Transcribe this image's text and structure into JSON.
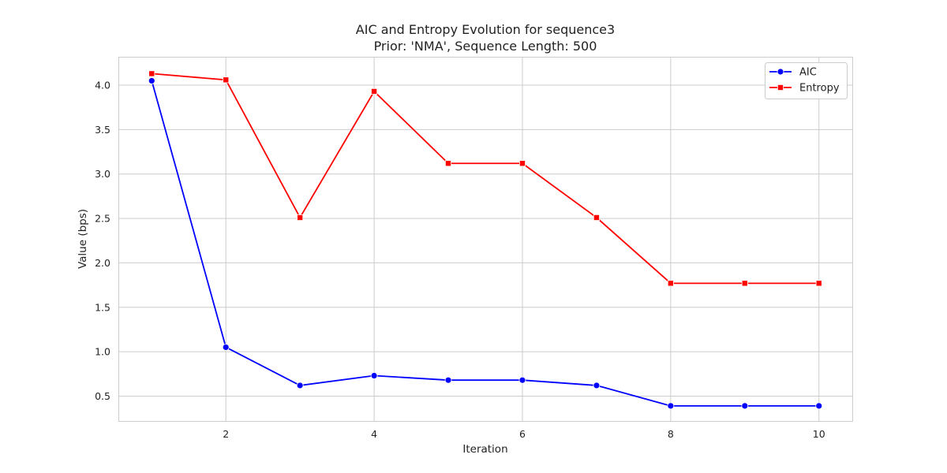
{
  "chart_data": {
    "type": "line",
    "title": "AIC and Entropy Evolution for sequence3",
    "subtitle": "Prior: 'NMA', Sequence Length: 500",
    "xlabel": "Iteration",
    "ylabel": "Value (bps)",
    "x": [
      1,
      2,
      3,
      4,
      5,
      6,
      7,
      8,
      9,
      10
    ],
    "xticks": [
      2,
      4,
      6,
      8,
      10
    ],
    "yticks": [
      0.5,
      1.0,
      1.5,
      2.0,
      2.5,
      3.0,
      3.5,
      4.0
    ],
    "xlim": [
      0.55,
      10.45
    ],
    "ylim": [
      0.22,
      4.32
    ],
    "grid": true,
    "legend_position": "top-right",
    "series": [
      {
        "name": "AIC",
        "color": "#0000ff",
        "marker": "circle",
        "values": [
          4.05,
          1.05,
          0.62,
          0.73,
          0.68,
          0.68,
          0.62,
          0.39,
          0.39,
          0.39
        ]
      },
      {
        "name": "Entropy",
        "color": "#ff0000",
        "marker": "square",
        "values": [
          4.13,
          4.06,
          2.51,
          3.93,
          3.12,
          3.12,
          2.51,
          1.77,
          1.77,
          1.77
        ]
      }
    ]
  }
}
